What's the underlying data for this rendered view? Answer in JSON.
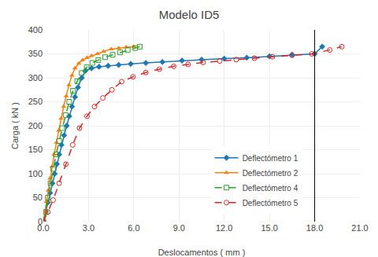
{
  "chart_data": {
    "type": "line",
    "title": "Modelo ID5",
    "x_label": "Deslocamentos ( mm )",
    "y_label": "Carga ( kN )",
    "xlim": [
      0,
      21.0
    ],
    "ylim": [
      0,
      400
    ],
    "xticks": [
      {
        "value": 0.0,
        "label": "0.0"
      },
      {
        "value": 3.0,
        "label": "3.0"
      },
      {
        "value": 6.0,
        "label": "6.0"
      },
      {
        "value": 9.0,
        "label": "9.0"
      },
      {
        "value": 12.0,
        "label": "12.0"
      },
      {
        "value": 15.0,
        "label": "15.0"
      },
      {
        "value": 18.0,
        "label": "18.0"
      },
      {
        "value": 21.0,
        "label": "21.0"
      }
    ],
    "yticks": [
      0,
      50,
      100,
      150,
      200,
      250,
      300,
      350,
      400
    ],
    "grid": true,
    "legend": "lower right",
    "vline_x": 18.0,
    "series": [
      {
        "name": "Deflectómetro 1",
        "marker": "diamond",
        "line_style": "solid",
        "x": [
          0.0,
          0.15,
          0.3,
          0.45,
          0.6,
          0.75,
          0.9,
          1.05,
          1.2,
          1.38,
          1.55,
          1.72,
          1.9,
          2.1,
          2.3,
          2.55,
          2.8,
          3.2,
          3.7,
          4.3,
          5.0,
          5.8,
          6.8,
          7.9,
          9.2,
          10.5,
          12.0,
          13.5,
          15.0,
          16.5,
          18.0,
          18.5
        ],
        "values": [
          0,
          20,
          40,
          60,
          80,
          100,
          120,
          140,
          160,
          180,
          200,
          220,
          240,
          260,
          280,
          300,
          315,
          320,
          323,
          325,
          327,
          329,
          331,
          333,
          336,
          338,
          340,
          342,
          345,
          348,
          350,
          365
        ]
      },
      {
        "name": "Deflectómetro 2",
        "marker": "triangle-up",
        "line_style": "solid",
        "x": [
          0.0,
          0.1,
          0.2,
          0.32,
          0.44,
          0.58,
          0.72,
          0.87,
          1.02,
          1.18,
          1.35,
          1.52,
          1.7,
          1.9,
          2.1,
          2.35,
          2.6,
          2.9,
          3.2,
          3.6,
          4.0,
          4.5,
          5.0,
          5.5,
          6.0
        ],
        "values": [
          0,
          20,
          42,
          65,
          90,
          115,
          140,
          165,
          190,
          215,
          240,
          262,
          285,
          305,
          320,
          330,
          337,
          342,
          346,
          350,
          355,
          360,
          362,
          364,
          365
        ]
      },
      {
        "name": "Deflectómetro 4",
        "marker": "square-open",
        "line_style": "dashed",
        "x": [
          0.0,
          0.15,
          0.3,
          0.48,
          0.66,
          0.85,
          1.05,
          1.25,
          1.48,
          1.72,
          1.97,
          2.25,
          2.55,
          2.88,
          3.25,
          3.65,
          4.1,
          4.6,
          5.1,
          5.6,
          6.1,
          6.4
        ],
        "values": [
          0,
          20,
          50,
          80,
          110,
          140,
          168,
          195,
          222,
          250,
          273,
          293,
          310,
          322,
          331,
          337,
          343,
          348,
          353,
          358,
          362,
          365
        ]
      },
      {
        "name": "Deflectómetro 5",
        "marker": "circle-open",
        "line_style": "dashed",
        "x": [
          0.0,
          0.3,
          0.65,
          1.05,
          1.5,
          1.95,
          2.4,
          2.9,
          3.4,
          3.95,
          4.55,
          5.2,
          5.95,
          6.8,
          7.7,
          8.65,
          9.6,
          10.6,
          11.7,
          12.8,
          14.0,
          15.2,
          16.5,
          17.8,
          19.0,
          19.8
        ],
        "values": [
          0,
          20,
          45,
          80,
          120,
          160,
          195,
          220,
          240,
          258,
          275,
          292,
          302,
          311,
          318,
          324,
          328,
          332,
          335,
          338,
          341,
          344,
          347,
          350,
          358,
          365
        ]
      }
    ]
  }
}
